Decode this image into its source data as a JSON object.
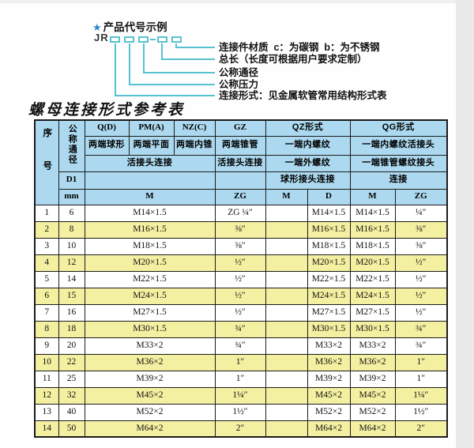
{
  "colors": {
    "header_blue": "#acd9ef",
    "row_yellow": "#f4f0a1",
    "diagram_cyan": "#57c2d1",
    "star_blue": "#2e86c9",
    "table_border": "#1b1b1b"
  },
  "diagram": {
    "star_icon": "★",
    "heading": "产品代号示例",
    "code_prefix": "JR",
    "labels": [
      "连接件材质  c：为碳钢  b：为不锈钢",
      "总长（长度可根据用户要求定制）",
      "公称通径",
      "公称压力",
      "连接形式：见金属软管常用结构形式表"
    ]
  },
  "title": "螺母连接形式参考表",
  "table": {
    "header": {
      "seq": "序号",
      "dn": "公称通径",
      "d1": "D1",
      "unit": "mm",
      "q": "Q(D)",
      "pm": "PM(A)",
      "nz": "NZ(C)",
      "gz": "GZ",
      "qz": "QZ形式",
      "qg": "QG形式",
      "q_desc": "两端球形",
      "pm_desc": "两端平面",
      "nz_desc": "两端内锥",
      "gz_desc": "两端锥管",
      "qz_row2": "一端内螺纹",
      "qg_row2": "一端内螺纹活接头",
      "union_conn": "活接头连接",
      "gz_conn": "活接头连接",
      "qz_row3": "一端外螺纹",
      "qg_row3": "一端锥管螺纹接头",
      "qz_conn": "球形接头连接",
      "qg_conn": "连接",
      "m": "M",
      "zg": "ZG",
      "qz_m": "M",
      "qz_d": "D",
      "qg_m": "M",
      "qg_zg": "ZG"
    },
    "rows": [
      {
        "seq": "1",
        "dn": "6",
        "m": "M14×1.5",
        "gz": "ZG ¼″",
        "qz_m": "",
        "qz_d": "M14×1.5",
        "qg_m": "M14×1.5",
        "qg_zg": "¼″"
      },
      {
        "seq": "2",
        "dn": "8",
        "m": "M16×1.5",
        "gz": "⅜″",
        "qz_m": "",
        "qz_d": "M16×1.5",
        "qg_m": "M16×1.5",
        "qg_zg": "⅜″"
      },
      {
        "seq": "3",
        "dn": "10",
        "m": "M18×1.5",
        "gz": "⅜″",
        "qz_m": "",
        "qz_d": "M18×1.5",
        "qg_m": "M18×1.5",
        "qg_zg": "⅜″"
      },
      {
        "seq": "4",
        "dn": "12",
        "m": "M20×1.5",
        "gz": "½″",
        "qz_m": "",
        "qz_d": "M20×1.5",
        "qg_m": "M20×1.5",
        "qg_zg": "½″"
      },
      {
        "seq": "5",
        "dn": "14",
        "m": "M22×1.5",
        "gz": "½″",
        "qz_m": "",
        "qz_d": "M22×1.5",
        "qg_m": "M22×1.5",
        "qg_zg": "½″"
      },
      {
        "seq": "6",
        "dn": "15",
        "m": "M24×1.5",
        "gz": "½″",
        "qz_m": "",
        "qz_d": "M24×1.5",
        "qg_m": "M24×1.5",
        "qg_zg": "½″"
      },
      {
        "seq": "7",
        "dn": "16",
        "m": "M27×1.5",
        "gz": "½″",
        "qz_m": "",
        "qz_d": "M27×1.5",
        "qg_m": "M27×1.5",
        "qg_zg": "½″"
      },
      {
        "seq": "8",
        "dn": "18",
        "m": "M30×1.5",
        "gz": "¾″",
        "qz_m": "",
        "qz_d": "M30×1.5",
        "qg_m": "M30×1.5",
        "qg_zg": "¾″"
      },
      {
        "seq": "9",
        "dn": "20",
        "m": "M33×2",
        "gz": "¾″",
        "qz_m": "",
        "qz_d": "M33×2",
        "qg_m": "M33×2",
        "qg_zg": "¾″"
      },
      {
        "seq": "10",
        "dn": "22",
        "m": "M36×2",
        "gz": "1″",
        "qz_m": "",
        "qz_d": "M36×2",
        "qg_m": "M36×2",
        "qg_zg": "1″"
      },
      {
        "seq": "11",
        "dn": "25",
        "m": "M39×2",
        "gz": "1″",
        "qz_m": "",
        "qz_d": "M39×2",
        "qg_m": "M39×2",
        "qg_zg": "1″"
      },
      {
        "seq": "12",
        "dn": "32",
        "m": "M45×2",
        "gz": "1¼″",
        "qz_m": "",
        "qz_d": "M45×2",
        "qg_m": "M45×2",
        "qg_zg": "1¼″"
      },
      {
        "seq": "13",
        "dn": "40",
        "m": "M52×2",
        "gz": "1½″",
        "qz_m": "",
        "qz_d": "M52×2",
        "qg_m": "M52×2",
        "qg_zg": "1½″"
      },
      {
        "seq": "14",
        "dn": "50",
        "m": "M64×2",
        "gz": "2″",
        "qz_m": "",
        "qz_d": "M64×2",
        "qg_m": "M64×2",
        "qg_zg": "2″"
      }
    ]
  }
}
